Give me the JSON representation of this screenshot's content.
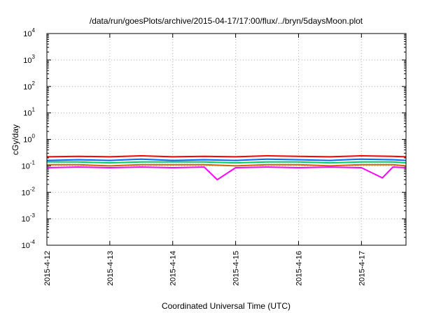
{
  "chart_data": {
    "type": "line",
    "title": "/data/run/goesPlots/archive/2015-04-17/17:00/flux/../bryn/5daysMoon.plot",
    "xlabel": "Coordinated Universal Time (UTC)",
    "ylabel": "cGy/day",
    "yscale": "log",
    "ylim": [
      0.0001,
      10000
    ],
    "y_ticks": [
      {
        "base": "10",
        "exp": "-4"
      },
      {
        "base": "10",
        "exp": "-3"
      },
      {
        "base": "10",
        "exp": "-2"
      },
      {
        "base": "10",
        "exp": "-1"
      },
      {
        "base": "10",
        "exp": "0"
      },
      {
        "base": "10",
        "exp": "1"
      },
      {
        "base": "10",
        "exp": "2"
      },
      {
        "base": "10",
        "exp": "3"
      },
      {
        "base": "10",
        "exp": "4"
      }
    ],
    "xlim": [
      "2015-04-12T00:00",
      "2015-04-17T17:00"
    ],
    "x_ticks": [
      "2015-4-12",
      "2015-4-13",
      "2015-4-14",
      "2015-4-15",
      "2015-4-16",
      "2015-4-17"
    ],
    "grid": true,
    "legend": "none",
    "series": [
      {
        "color": "#ff0000",
        "x": [
          "2015-04-12T00:00",
          "2015-04-12T12:00",
          "2015-04-13T00:00",
          "2015-04-13T12:00",
          "2015-04-14T00:00",
          "2015-04-14T12:00",
          "2015-04-15T00:00",
          "2015-04-15T12:00",
          "2015-04-16T00:00",
          "2015-04-16T12:00",
          "2015-04-17T00:00",
          "2015-04-17T12:00",
          "2015-04-17T17:00"
        ],
        "y": [
          0.22,
          0.23,
          0.22,
          0.24,
          0.22,
          0.23,
          0.22,
          0.24,
          0.23,
          0.22,
          0.24,
          0.23,
          0.22
        ]
      },
      {
        "color": "#0066ff",
        "x": [
          "2015-04-12T00:00",
          "2015-04-12T12:00",
          "2015-04-13T00:00",
          "2015-04-13T12:00",
          "2015-04-14T00:00",
          "2015-04-14T12:00",
          "2015-04-15T00:00",
          "2015-04-15T12:00",
          "2015-04-16T00:00",
          "2015-04-16T12:00",
          "2015-04-17T00:00",
          "2015-04-17T12:00",
          "2015-04-17T17:00"
        ],
        "y": [
          0.16,
          0.17,
          0.16,
          0.18,
          0.16,
          0.17,
          0.16,
          0.18,
          0.17,
          0.16,
          0.18,
          0.17,
          0.16
        ]
      },
      {
        "color": "#00cc66",
        "x": [
          "2015-04-12T00:00",
          "2015-04-12T12:00",
          "2015-04-13T00:00",
          "2015-04-13T12:00",
          "2015-04-14T00:00",
          "2015-04-14T12:00",
          "2015-04-15T00:00",
          "2015-04-15T12:00",
          "2015-04-16T00:00",
          "2015-04-16T12:00",
          "2015-04-17T00:00",
          "2015-04-17T12:00",
          "2015-04-17T17:00"
        ],
        "y": [
          0.14,
          0.14,
          0.13,
          0.14,
          0.14,
          0.14,
          0.13,
          0.14,
          0.14,
          0.13,
          0.14,
          0.14,
          0.13
        ]
      },
      {
        "color": "#cc6600",
        "x": [
          "2015-04-12T00:00",
          "2015-04-12T12:00",
          "2015-04-13T00:00",
          "2015-04-13T12:00",
          "2015-04-14T00:00",
          "2015-04-14T12:00",
          "2015-04-15T00:00",
          "2015-04-15T12:00",
          "2015-04-16T00:00",
          "2015-04-16T12:00",
          "2015-04-17T00:00",
          "2015-04-17T12:00",
          "2015-04-17T17:00"
        ],
        "y": [
          0.11,
          0.11,
          0.1,
          0.11,
          0.11,
          0.11,
          0.1,
          0.11,
          0.11,
          0.1,
          0.11,
          0.11,
          0.1
        ]
      },
      {
        "color": "#ff00ff",
        "x": [
          "2015-04-12T00:00",
          "2015-04-12T12:00",
          "2015-04-13T00:00",
          "2015-04-13T12:00",
          "2015-04-14T00:00",
          "2015-04-14T12:00",
          "2015-04-14T17:00",
          "2015-04-15T00:00",
          "2015-04-15T12:00",
          "2015-04-16T00:00",
          "2015-04-16T12:00",
          "2015-04-17T00:00",
          "2015-04-17T08:00",
          "2015-04-17T12:00",
          "2015-04-17T17:00"
        ],
        "y": [
          0.085,
          0.09,
          0.085,
          0.09,
          0.085,
          0.09,
          0.03,
          0.085,
          0.09,
          0.085,
          0.09,
          0.085,
          0.035,
          0.09,
          0.085
        ]
      }
    ]
  }
}
